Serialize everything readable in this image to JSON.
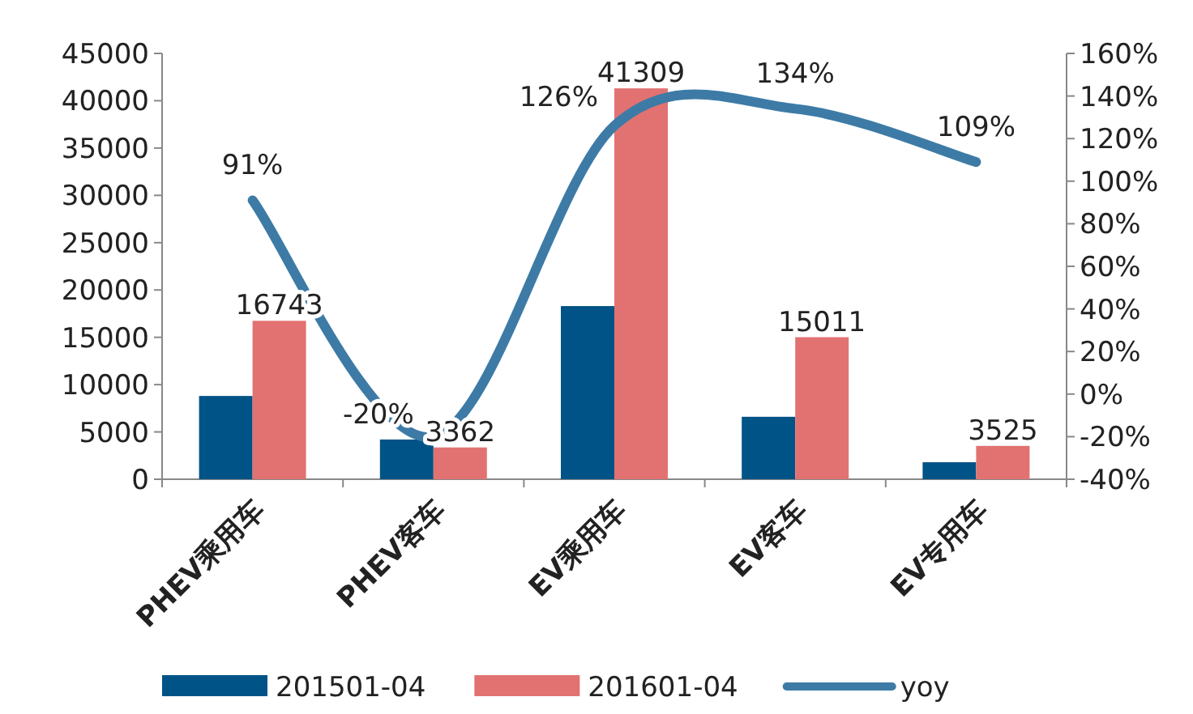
{
  "chart_data": {
    "type": "bar",
    "categories": [
      "PHEV乘用车",
      "PHEV客车",
      "EV乘用车",
      "EV客车",
      "EV专用车"
    ],
    "series": [
      {
        "name": "201501-04",
        "color": "#005386",
        "values": [
          8800,
          4200,
          18300,
          6600,
          1800
        ]
      },
      {
        "name": "201601-04",
        "color": "#e27272",
        "values": [
          16743,
          3362,
          41309,
          15011,
          3525
        ],
        "value_labels": [
          "16743",
          "3362",
          "41309",
          "15011",
          "3525"
        ]
      },
      {
        "name": "yoy",
        "type": "line",
        "axis": "y2",
        "color": "#3d7ba6",
        "values": [
          91,
          -20,
          126,
          134,
          109
        ],
        "value_labels": [
          "91%",
          "-20%",
          "126%",
          "134%",
          "109%"
        ]
      }
    ],
    "ylim": [
      0,
      45000
    ],
    "yticks": [
      0,
      5000,
      10000,
      15000,
      20000,
      25000,
      30000,
      35000,
      40000,
      45000
    ],
    "y2lim": [
      -40,
      160
    ],
    "y2ticks": [
      {
        "value": -40,
        "label": "-40%"
      },
      {
        "value": -20,
        "label": "-20%"
      },
      {
        "value": 0,
        "label": "0%"
      },
      {
        "value": 20,
        "label": "20%"
      },
      {
        "value": 40,
        "label": "40%"
      },
      {
        "value": 60,
        "label": "60%"
      },
      {
        "value": 80,
        "label": "80%"
      },
      {
        "value": 100,
        "label": "100%"
      },
      {
        "value": 120,
        "label": "120%"
      },
      {
        "value": 140,
        "label": "140%"
      },
      {
        "value": 160,
        "label": "160%"
      }
    ],
    "legend": "bottom",
    "grid": false
  }
}
